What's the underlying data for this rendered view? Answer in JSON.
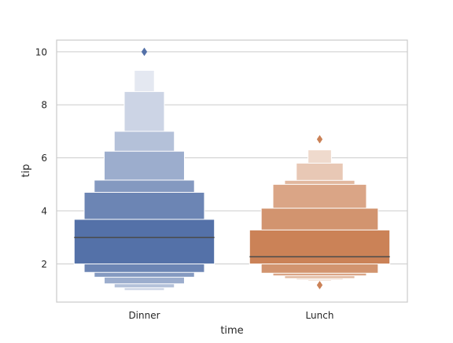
{
  "chart_data": {
    "type": "boxen",
    "xlabel": "time",
    "ylabel": "tip",
    "categories": [
      "Dinner",
      "Lunch"
    ],
    "ylim": [
      0.56,
      10.44
    ],
    "yticks": [
      2,
      4,
      6,
      8,
      10
    ],
    "grid": true,
    "colors": {
      "Dinner": "#5471a8",
      "Lunch": "#cb8257"
    },
    "series": [
      {
        "category": "Dinner",
        "median": 3.0,
        "levels": [
          {
            "depth": 1,
            "low": 2.0,
            "high": 3.68
          },
          {
            "depth": 2,
            "low": 1.68,
            "high": 4.7
          },
          {
            "depth": 3,
            "low": 1.5,
            "high": 5.16
          },
          {
            "depth": 4,
            "low": 1.25,
            "high": 6.25
          },
          {
            "depth": 5,
            "low": 1.1,
            "high": 7.0
          },
          {
            "depth": 6,
            "low": 1.0,
            "high": 8.5
          },
          {
            "depth": 7,
            "low": 1.0,
            "high": 9.3
          }
        ],
        "outliers": [
          10.0
        ]
      },
      {
        "category": "Lunch",
        "median": 2.27,
        "levels": [
          {
            "depth": 1,
            "low": 2.0,
            "high": 3.28
          },
          {
            "depth": 2,
            "low": 1.65,
            "high": 4.1
          },
          {
            "depth": 3,
            "low": 1.55,
            "high": 5.0
          },
          {
            "depth": 4,
            "low": 1.45,
            "high": 5.15
          },
          {
            "depth": 5,
            "low": 1.4,
            "high": 5.8
          },
          {
            "depth": 6,
            "low": 1.35,
            "high": 6.3
          }
        ],
        "outliers": [
          6.7,
          1.2
        ]
      }
    ]
  }
}
